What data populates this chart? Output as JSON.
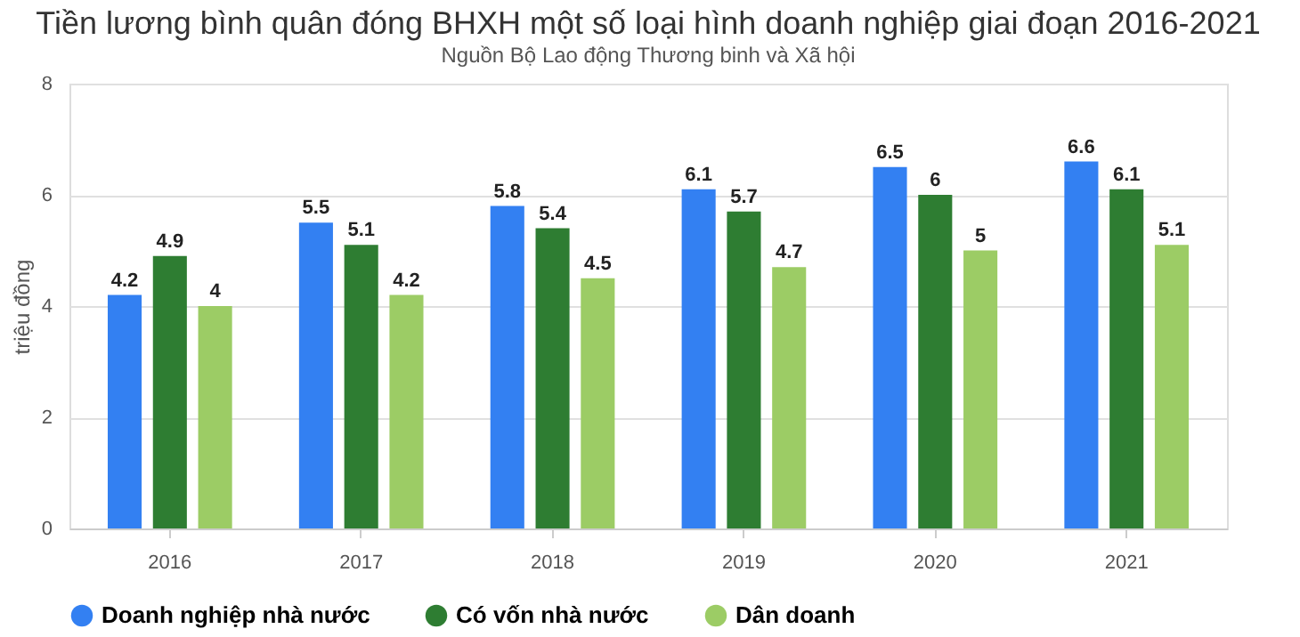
{
  "chart_data": {
    "type": "bar",
    "title": "Tiền lương bình quân đóng BHXH một số loại hình doanh nghiệp giai đoạn 2016-2021",
    "subtitle": "Nguồn Bộ Lao động Thương binh và Xã hội",
    "ylabel": "triệu đồng",
    "categories": [
      "2016",
      "2017",
      "2018",
      "2019",
      "2020",
      "2021"
    ],
    "series": [
      {
        "name": "Doanh nghiệp nhà nước",
        "color": "#3380f2",
        "values": [
          4.2,
          5.5,
          5.8,
          6.1,
          6.5,
          6.6
        ]
      },
      {
        "name": "Có vốn nhà nước",
        "color": "#2e7d32",
        "values": [
          4.9,
          5.1,
          5.4,
          5.7,
          6,
          6.1
        ]
      },
      {
        "name": "Dân doanh",
        "color": "#9ccc65",
        "values": [
          4,
          4.2,
          4.5,
          4.7,
          5,
          5.1
        ]
      }
    ],
    "ylim": [
      0,
      8
    ],
    "yticks": [
      0,
      2,
      4,
      6,
      8
    ],
    "grid": "y",
    "legend": "bottom",
    "data_labels": true
  }
}
